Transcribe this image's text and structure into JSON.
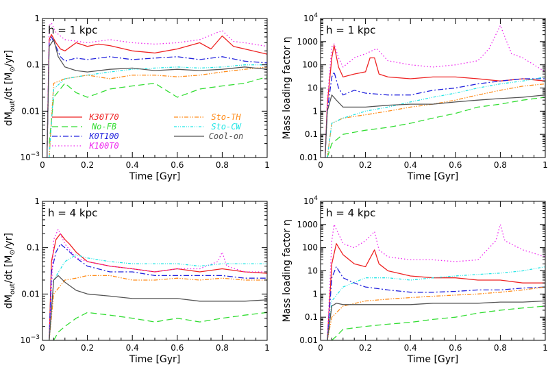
{
  "colors": {
    "K30T70": "#ee2222",
    "No-FB": "#33dd33",
    "K0T100": "#2222dd",
    "K100T0": "#ee22ee",
    "Sto-TH": "#ff8c1a",
    "Sto-CW": "#22e5e5",
    "Cool-on": "#555555"
  },
  "chart_data": [
    {
      "type": "line",
      "panel_label": "h = 1 kpc",
      "xlabel": "Time [Gyr]",
      "ylabel": "dM_out/dt [M_sun/yr]",
      "yscale": "log",
      "xlim": [
        0,
        1
      ],
      "ylim": [
        0.001,
        1
      ],
      "xticks": [
        "0",
        "0.2",
        "0.4",
        "0.6",
        "0.8",
        "1"
      ],
      "yticks": [
        "10^-3",
        "0.01",
        "0.1",
        "1"
      ],
      "legend": [
        {
          "name": "K30T70"
        },
        {
          "name": "No-FB"
        },
        {
          "name": "K0T100"
        },
        {
          "name": "K100T0"
        },
        {
          "name": "Sto-TH"
        },
        {
          "name": "Sto-CW"
        },
        {
          "name": "Cool-on"
        }
      ],
      "series": [
        {
          "name": "K30T70",
          "x": [
            0.02,
            0.03,
            0.04,
            0.06,
            0.08,
            0.1,
            0.15,
            0.2,
            0.25,
            0.3,
            0.4,
            0.5,
            0.6,
            0.7,
            0.75,
            0.8,
            0.85,
            0.9,
            1.0
          ],
          "y": [
            0.001,
            0.35,
            0.45,
            0.3,
            0.22,
            0.2,
            0.3,
            0.25,
            0.28,
            0.26,
            0.2,
            0.18,
            0.22,
            0.3,
            0.22,
            0.42,
            0.25,
            0.22,
            0.17
          ]
        },
        {
          "name": "No-FB",
          "x": [
            0.03,
            0.05,
            0.1,
            0.15,
            0.2,
            0.3,
            0.4,
            0.5,
            0.6,
            0.7,
            0.8,
            0.9,
            1.0
          ],
          "y": [
            0.002,
            0.02,
            0.04,
            0.025,
            0.02,
            0.03,
            0.035,
            0.04,
            0.02,
            0.03,
            0.035,
            0.04,
            0.055
          ]
        },
        {
          "name": "K0T100",
          "x": [
            0.02,
            0.03,
            0.04,
            0.06,
            0.08,
            0.1,
            0.15,
            0.2,
            0.3,
            0.4,
            0.5,
            0.6,
            0.7,
            0.8,
            0.9,
            1.0
          ],
          "y": [
            0.001,
            0.3,
            0.4,
            0.25,
            0.15,
            0.12,
            0.14,
            0.13,
            0.15,
            0.13,
            0.14,
            0.15,
            0.13,
            0.15,
            0.12,
            0.11
          ]
        },
        {
          "name": "K100T0",
          "x": [
            0.02,
            0.03,
            0.04,
            0.06,
            0.1,
            0.2,
            0.3,
            0.4,
            0.5,
            0.6,
            0.7,
            0.8,
            0.85,
            0.9,
            1.0
          ],
          "y": [
            0.001,
            0.7,
            0.8,
            0.5,
            0.35,
            0.3,
            0.35,
            0.3,
            0.28,
            0.3,
            0.35,
            0.55,
            0.32,
            0.3,
            0.25
          ]
        },
        {
          "name": "Sto-TH",
          "x": [
            0.03,
            0.05,
            0.1,
            0.2,
            0.3,
            0.4,
            0.5,
            0.6,
            0.7,
            0.8,
            0.9,
            1.0
          ],
          "y": [
            0.001,
            0.04,
            0.05,
            0.06,
            0.05,
            0.06,
            0.06,
            0.055,
            0.06,
            0.07,
            0.08,
            0.09
          ]
        },
        {
          "name": "Sto-CW",
          "x": [
            0.03,
            0.05,
            0.1,
            0.2,
            0.3,
            0.4,
            0.5,
            0.6,
            0.7,
            0.8,
            0.9,
            1.0
          ],
          "y": [
            0.001,
            0.03,
            0.05,
            0.06,
            0.07,
            0.08,
            0.085,
            0.09,
            0.085,
            0.09,
            0.1,
            0.1
          ]
        },
        {
          "name": "Cool-on",
          "x": [
            0.02,
            0.03,
            0.05,
            0.07,
            0.1,
            0.15,
            0.2,
            0.3,
            0.4,
            0.5,
            0.6,
            0.7,
            0.8,
            0.9,
            1.0
          ],
          "y": [
            0.001,
            0.25,
            0.35,
            0.15,
            0.09,
            0.075,
            0.07,
            0.08,
            0.085,
            0.075,
            0.08,
            0.075,
            0.08,
            0.09,
            0.08
          ]
        }
      ]
    },
    {
      "type": "line",
      "panel_label": "h = 1 kpc",
      "xlabel": "Time [Gyr]",
      "ylabel": "Mass loading factor η",
      "yscale": "log",
      "xlim": [
        0,
        1
      ],
      "ylim": [
        0.01,
        10000
      ],
      "xticks": [
        "0",
        "0.2",
        "0.4",
        "0.6",
        "0.8",
        "1"
      ],
      "yticks": [
        "0.01",
        "0.1",
        "1",
        "10",
        "100",
        "1000",
        "10^4"
      ],
      "series": [
        {
          "name": "K30T70",
          "x": [
            0.02,
            0.03,
            0.05,
            0.06,
            0.08,
            0.1,
            0.15,
            0.2,
            0.22,
            0.24,
            0.26,
            0.3,
            0.4,
            0.5,
            0.6,
            0.7,
            0.8,
            0.9,
            1.0
          ],
          "y": [
            0.01,
            2,
            200,
            700,
            80,
            30,
            40,
            50,
            200,
            200,
            40,
            30,
            25,
            30,
            30,
            25,
            20,
            25,
            20
          ]
        },
        {
          "name": "No-FB",
          "x": [
            0.03,
            0.05,
            0.1,
            0.2,
            0.3,
            0.4,
            0.5,
            0.6,
            0.7,
            0.8,
            0.9,
            1.0
          ],
          "y": [
            0.01,
            0.04,
            0.1,
            0.15,
            0.2,
            0.3,
            0.5,
            0.8,
            1.5,
            2,
            3,
            4
          ]
        },
        {
          "name": "K0T100",
          "x": [
            0.02,
            0.03,
            0.05,
            0.06,
            0.08,
            0.1,
            0.15,
            0.2,
            0.3,
            0.4,
            0.5,
            0.6,
            0.7,
            0.8,
            0.9,
            1.0
          ],
          "y": [
            0.01,
            1,
            30,
            50,
            10,
            5,
            8,
            6,
            5,
            5,
            8,
            10,
            15,
            20,
            25,
            25
          ]
        },
        {
          "name": "K100T0",
          "x": [
            0.02,
            0.03,
            0.05,
            0.06,
            0.08,
            0.1,
            0.15,
            0.2,
            0.25,
            0.3,
            0.4,
            0.5,
            0.6,
            0.7,
            0.75,
            0.8,
            0.85,
            0.9,
            1.0
          ],
          "y": [
            0.01,
            3,
            600,
            800,
            200,
            80,
            200,
            300,
            500,
            150,
            100,
            80,
            100,
            150,
            500,
            5000,
            300,
            200,
            50
          ]
        },
        {
          "name": "Sto-TH",
          "x": [
            0.03,
            0.05,
            0.1,
            0.2,
            0.3,
            0.4,
            0.5,
            0.6,
            0.7,
            0.8,
            0.9,
            1.0
          ],
          "y": [
            0.01,
            0.3,
            0.5,
            0.7,
            1,
            1.5,
            2,
            3,
            5,
            8,
            12,
            15
          ]
        },
        {
          "name": "Sto-CW",
          "x": [
            0.03,
            0.05,
            0.1,
            0.2,
            0.3,
            0.4,
            0.5,
            0.6,
            0.7,
            0.8,
            0.9,
            1.0
          ],
          "y": [
            0.01,
            0.3,
            0.5,
            1,
            1.5,
            2.5,
            4,
            6,
            10,
            15,
            20,
            30
          ]
        },
        {
          "name": "Cool-on",
          "x": [
            0.02,
            0.03,
            0.05,
            0.07,
            0.1,
            0.2,
            0.3,
            0.4,
            0.5,
            0.6,
            0.7,
            0.8,
            0.9,
            1.0
          ],
          "y": [
            0.01,
            1,
            5,
            3,
            1.5,
            1.5,
            1.8,
            2,
            2,
            2.5,
            3,
            3.5,
            4,
            5
          ]
        }
      ]
    },
    {
      "type": "line",
      "panel_label": "h = 4 kpc",
      "xlabel": "Time [Gyr]",
      "ylabel": "dM_out/dt [M_sun/yr]",
      "yscale": "log",
      "xlim": [
        0,
        1
      ],
      "ylim": [
        0.001,
        1
      ],
      "xticks": [
        "0",
        "0.2",
        "0.4",
        "0.6",
        "0.8",
        "1"
      ],
      "yticks": [
        "10^-3",
        "0.01",
        "0.1",
        "1"
      ],
      "series": [
        {
          "name": "K30T70",
          "x": [
            0.03,
            0.04,
            0.06,
            0.08,
            0.1,
            0.12,
            0.15,
            0.2,
            0.3,
            0.4,
            0.5,
            0.6,
            0.7,
            0.8,
            0.9,
            1.0
          ],
          "y": [
            0.001,
            0.05,
            0.15,
            0.2,
            0.15,
            0.12,
            0.08,
            0.05,
            0.04,
            0.035,
            0.03,
            0.035,
            0.03,
            0.035,
            0.03,
            0.028
          ]
        },
        {
          "name": "No-FB",
          "x": [
            0.05,
            0.07,
            0.1,
            0.15,
            0.2,
            0.3,
            0.4,
            0.5,
            0.6,
            0.7,
            0.8,
            0.9,
            1.0
          ],
          "y": [
            0.001,
            0.0015,
            0.002,
            0.003,
            0.004,
            0.0035,
            0.003,
            0.0025,
            0.003,
            0.0025,
            0.003,
            0.0035,
            0.004
          ]
        },
        {
          "name": "K0T100",
          "x": [
            0.03,
            0.04,
            0.06,
            0.08,
            0.1,
            0.15,
            0.2,
            0.3,
            0.4,
            0.5,
            0.6,
            0.7,
            0.8,
            0.9,
            1.0
          ],
          "y": [
            0.001,
            0.03,
            0.08,
            0.12,
            0.1,
            0.06,
            0.04,
            0.03,
            0.03,
            0.025,
            0.025,
            0.025,
            0.025,
            0.022,
            0.022
          ]
        },
        {
          "name": "K100T0",
          "x": [
            0.03,
            0.05,
            0.07,
            0.1,
            0.15,
            0.2,
            0.3,
            0.4,
            0.5,
            0.6,
            0.7,
            0.78,
            0.8,
            0.82,
            0.9,
            1.0
          ],
          "y": [
            0.001,
            0.15,
            0.25,
            0.12,
            0.06,
            0.05,
            0.04,
            0.035,
            0.03,
            0.035,
            0.035,
            0.05,
            0.08,
            0.04,
            0.03,
            0.03
          ]
        },
        {
          "name": "Sto-TH",
          "x": [
            0.03,
            0.05,
            0.1,
            0.15,
            0.2,
            0.3,
            0.4,
            0.5,
            0.6,
            0.7,
            0.8,
            0.9,
            1.0
          ],
          "y": [
            0.001,
            0.01,
            0.02,
            0.022,
            0.025,
            0.025,
            0.02,
            0.02,
            0.022,
            0.02,
            0.022,
            0.02,
            0.02
          ]
        },
        {
          "name": "Sto-CW",
          "x": [
            0.03,
            0.05,
            0.1,
            0.15,
            0.2,
            0.3,
            0.4,
            0.5,
            0.6,
            0.7,
            0.8,
            0.9,
            1.0
          ],
          "y": [
            0.001,
            0.02,
            0.05,
            0.07,
            0.06,
            0.05,
            0.045,
            0.045,
            0.045,
            0.04,
            0.045,
            0.045,
            0.045
          ]
        },
        {
          "name": "Cool-on",
          "x": [
            0.03,
            0.05,
            0.07,
            0.1,
            0.15,
            0.2,
            0.3,
            0.4,
            0.5,
            0.6,
            0.7,
            0.8,
            0.9,
            1.0
          ],
          "y": [
            0.001,
            0.02,
            0.025,
            0.018,
            0.012,
            0.01,
            0.009,
            0.008,
            0.008,
            0.008,
            0.007,
            0.007,
            0.007,
            0.0075
          ]
        }
      ]
    },
    {
      "type": "line",
      "panel_label": "h = 4 kpc",
      "xlabel": "Time [Gyr]",
      "ylabel": "Mass loading factor η",
      "yscale": "log",
      "xlim": [
        0,
        1
      ],
      "ylim": [
        0.01,
        10000
      ],
      "xticks": [
        "0",
        "0.2",
        "0.4",
        "0.6",
        "0.8",
        "1"
      ],
      "yticks": [
        "0.01",
        "0.1",
        "1",
        "10",
        "100",
        "1000",
        "10^4"
      ],
      "series": [
        {
          "name": "K30T70",
          "x": [
            0.03,
            0.05,
            0.07,
            0.1,
            0.15,
            0.2,
            0.24,
            0.26,
            0.3,
            0.4,
            0.5,
            0.6,
            0.7,
            0.8,
            0.9,
            1.0
          ],
          "y": [
            0.01,
            20,
            150,
            50,
            20,
            15,
            80,
            20,
            10,
            6,
            5,
            5,
            4,
            4,
            3,
            3
          ]
        },
        {
          "name": "No-FB",
          "x": [
            0.05,
            0.07,
            0.1,
            0.2,
            0.3,
            0.4,
            0.5,
            0.6,
            0.7,
            0.8,
            0.9,
            1.0
          ],
          "y": [
            0.01,
            0.015,
            0.03,
            0.04,
            0.05,
            0.06,
            0.08,
            0.1,
            0.15,
            0.2,
            0.25,
            0.3
          ]
        },
        {
          "name": "K0T100",
          "x": [
            0.03,
            0.05,
            0.07,
            0.1,
            0.15,
            0.2,
            0.3,
            0.4,
            0.5,
            0.6,
            0.7,
            0.8,
            0.9,
            1.0
          ],
          "y": [
            0.01,
            5,
            15,
            5,
            3,
            2,
            1.5,
            1.2,
            1.2,
            1.3,
            1.5,
            1.5,
            1.8,
            2
          ]
        },
        {
          "name": "K100T0",
          "x": [
            0.03,
            0.05,
            0.06,
            0.08,
            0.1,
            0.15,
            0.2,
            0.24,
            0.26,
            0.3,
            0.4,
            0.5,
            0.6,
            0.7,
            0.78,
            0.8,
            0.82,
            0.9,
            1.0
          ],
          "y": [
            0.01,
            200,
            1000,
            400,
            150,
            100,
            200,
            500,
            80,
            40,
            30,
            30,
            25,
            30,
            200,
            1000,
            200,
            80,
            40
          ]
        },
        {
          "name": "Sto-TH",
          "x": [
            0.03,
            0.05,
            0.1,
            0.2,
            0.3,
            0.4,
            0.5,
            0.6,
            0.7,
            0.8,
            0.9,
            1.0
          ],
          "y": [
            0.01,
            0.1,
            0.3,
            0.5,
            0.6,
            0.7,
            0.8,
            0.9,
            1,
            1.2,
            1.5,
            2
          ]
        },
        {
          "name": "Sto-CW",
          "x": [
            0.03,
            0.05,
            0.1,
            0.2,
            0.3,
            0.4,
            0.5,
            0.6,
            0.7,
            0.8,
            0.9,
            1.0
          ],
          "y": [
            0.01,
            0.5,
            2,
            5,
            5,
            4,
            5,
            6,
            7,
            8,
            10,
            15
          ]
        },
        {
          "name": "Cool-on",
          "x": [
            0.03,
            0.05,
            0.07,
            0.1,
            0.2,
            0.3,
            0.4,
            0.5,
            0.6,
            0.7,
            0.8,
            0.9,
            1.0
          ],
          "y": [
            0.01,
            0.3,
            0.4,
            0.35,
            0.35,
            0.35,
            0.35,
            0.4,
            0.4,
            0.4,
            0.45,
            0.45,
            0.5
          ]
        }
      ]
    }
  ]
}
